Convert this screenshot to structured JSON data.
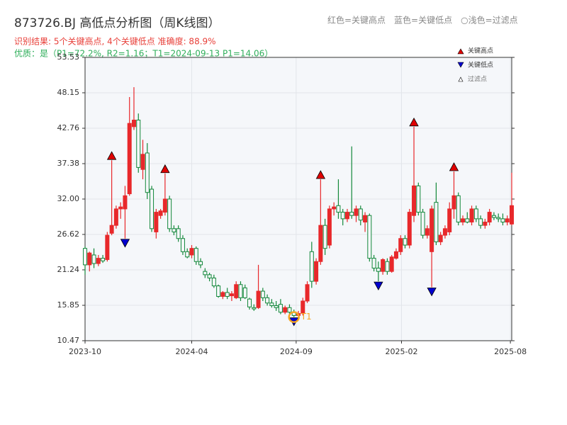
{
  "chart_data": {
    "type": "candlestick",
    "title": "873726.BJ 高低点分析图（周K线图）",
    "subtitle": "识别结果: 5个关键高点, 4个关键低点  准确度: 88.9%",
    "subtitle2": "优质：是（P1=72.2%, R2=1.16；T1=2024-09-13 P1=14.06）",
    "note": "红色=关键高点　蓝色=关键低点　○浅色=过滤点",
    "up_color": "#e8282b",
    "down_color": "#13883a",
    "x": [
      0,
      1,
      2,
      3,
      4,
      5,
      6,
      7,
      8,
      9,
      10,
      11,
      12,
      13,
      14,
      15,
      16,
      17,
      18,
      19,
      20,
      21,
      22,
      23,
      24,
      25,
      26,
      27,
      28,
      29,
      30,
      31,
      32,
      33,
      34,
      35,
      36,
      37,
      38,
      39,
      40,
      41,
      42,
      43,
      44,
      45,
      46,
      47,
      48,
      49,
      50,
      51,
      52,
      53,
      54,
      55,
      56,
      57,
      58,
      59,
      60,
      61,
      62,
      63,
      64,
      65,
      66,
      67,
      68,
      69,
      70,
      71,
      72,
      73,
      74,
      75,
      76,
      77,
      78,
      79,
      80,
      81,
      82,
      83,
      84,
      85,
      86,
      87,
      88,
      89,
      90,
      91,
      92,
      93,
      94,
      95,
      96
    ],
    "open": [
      24.5,
      22.0,
      23.5,
      22.2,
      23.0,
      22.8,
      26.8,
      28.0,
      30.5,
      30.5,
      32.8,
      43.0,
      44.0,
      36.5,
      39.0,
      33.5,
      27.0,
      29.5,
      30.0,
      32.0,
      27.5,
      27.5,
      26.0,
      24.0,
      23.5,
      24.5,
      22.5,
      21.0,
      20.5,
      20.0,
      18.8,
      17.2,
      17.8,
      17.3,
      17.0,
      19.0,
      18.5,
      16.8,
      15.5,
      15.5,
      18.0,
      17.0,
      16.2,
      15.8,
      16.0,
      14.8,
      15.5,
      14.8,
      14.3,
      14.6,
      16.5,
      24.0,
      19.5,
      22.5,
      28.0,
      25.0,
      30.5,
      31.0,
      30.0,
      29.0,
      30.0,
      29.5,
      30.5,
      28.5,
      29.5,
      23.0,
      21.5,
      21.0,
      22.5,
      21.0,
      23.0,
      24.0,
      26.0,
      25.0,
      29.5,
      34.0,
      30.0,
      26.5,
      24.0,
      31.5,
      25.5,
      26.5,
      27.0,
      30.5,
      32.5,
      28.5,
      29.0,
      28.5,
      30.5,
      29.0,
      28.0,
      28.5,
      29.5,
      29.2,
      29.0,
      28.5,
      28.2
    ],
    "high": [
      24.8,
      24.0,
      24.5,
      23.5,
      23.5,
      27.0,
      37.9,
      31.0,
      31.5,
      34.0,
      47.5,
      49.0,
      45.0,
      41.0,
      40.5,
      34.0,
      30.5,
      30.5,
      35.9,
      32.5,
      28.0,
      28.0,
      26.5,
      24.5,
      25.0,
      24.8,
      23.0,
      21.5,
      20.8,
      20.5,
      19.0,
      18.0,
      18.5,
      18.0,
      19.5,
      19.5,
      19.0,
      17.0,
      16.0,
      22.0,
      18.5,
      17.5,
      16.8,
      16.5,
      16.8,
      15.8,
      16.0,
      15.2,
      15.0,
      17.0,
      19.5,
      25.5,
      23.0,
      35.0,
      29.0,
      31.0,
      31.5,
      35.0,
      30.5,
      30.5,
      40.0,
      31.0,
      31.0,
      30.0,
      29.8,
      23.5,
      22.5,
      23.0,
      23.0,
      23.5,
      24.5,
      26.5,
      26.5,
      30.5,
      43.0,
      34.5,
      30.5,
      28.0,
      31.0,
      34.5,
      27.0,
      28.0,
      31.5,
      36.2,
      33.0,
      29.5,
      30.0,
      31.0,
      31.0,
      29.5,
      29.0,
      30.5,
      30.0,
      29.8,
      29.8,
      29.5,
      36.0
    ],
    "low": [
      20.5,
      21.0,
      21.5,
      21.8,
      22.3,
      22.5,
      26.5,
      27.5,
      29.0,
      26.0,
      32.5,
      42.5,
      36.0,
      35.0,
      32.0,
      27.0,
      26.0,
      29.0,
      29.5,
      27.0,
      26.5,
      25.5,
      23.5,
      23.0,
      23.0,
      22.0,
      21.5,
      20.0,
      19.5,
      18.5,
      17.0,
      16.8,
      16.8,
      16.5,
      16.8,
      16.5,
      16.8,
      15.2,
      15.0,
      15.3,
      16.5,
      15.8,
      15.5,
      15.0,
      14.5,
      14.5,
      14.5,
      14.06,
      14.0,
      14.3,
      16.2,
      18.5,
      19.0,
      22.0,
      23.5,
      24.5,
      29.5,
      29.0,
      28.0,
      28.5,
      29.0,
      28.5,
      28.0,
      27.0,
      22.5,
      21.0,
      19.5,
      20.5,
      20.5,
      20.8,
      22.8,
      23.5,
      24.5,
      24.5,
      28.5,
      29.5,
      26.0,
      26.0,
      18.6,
      25.0,
      25.0,
      26.0,
      26.5,
      29.0,
      28.0,
      28.0,
      28.3,
      28.0,
      28.5,
      27.5,
      27.5,
      28.0,
      28.8,
      28.5,
      28.0,
      28.0,
      28.0
    ],
    "close": [
      22.0,
      23.8,
      22.2,
      23.0,
      22.6,
      26.5,
      28.0,
      30.5,
      30.8,
      32.5,
      43.5,
      44.0,
      36.8,
      38.8,
      33.0,
      27.5,
      30.0,
      30.2,
      32.0,
      27.5,
      27.0,
      26.0,
      24.0,
      23.2,
      24.5,
      22.5,
      22.0,
      20.5,
      20.0,
      18.8,
      17.2,
      17.8,
      17.2,
      17.6,
      19.0,
      17.0,
      17.0,
      15.6,
      15.3,
      18.0,
      17.0,
      16.2,
      15.8,
      15.5,
      14.8,
      15.5,
      14.8,
      14.3,
      14.6,
      16.5,
      19.0,
      19.5,
      22.5,
      28.0,
      24.5,
      30.5,
      30.8,
      30.0,
      29.0,
      30.0,
      29.5,
      30.5,
      28.8,
      29.5,
      23.0,
      21.5,
      21.0,
      22.8,
      21.0,
      23.2,
      24.0,
      26.0,
      25.0,
      30.0,
      34.0,
      30.0,
      26.5,
      27.5,
      30.5,
      25.5,
      26.5,
      27.5,
      30.5,
      32.5,
      28.5,
      29.0,
      28.5,
      30.5,
      29.0,
      28.0,
      28.5,
      30.0,
      29.2,
      29.0,
      28.5,
      29.0,
      31.0
    ],
    "key_highs": {
      "name": "关键高点",
      "color": "#e00000",
      "x": [
        6,
        18,
        53,
        74,
        83
      ],
      "values": [
        37.9,
        35.9,
        35.0,
        43.0,
        36.2
      ]
    },
    "key_lows": {
      "name": "关键低点",
      "color": "#0000d0",
      "x": [
        9,
        47,
        66,
        78
      ],
      "values": [
        26.0,
        14.06,
        19.5,
        18.6
      ]
    },
    "filtered": {
      "name": "过滤点"
    },
    "annotations": [
      {
        "text": "T1",
        "x": 47,
        "y": 14.06,
        "color": "#f5a623"
      }
    ],
    "xlim": [
      0,
      96
    ],
    "xticks": [
      {
        "value": 0,
        "label": "2023-10"
      },
      {
        "value": 24,
        "label": "2024-04"
      },
      {
        "value": 47.5,
        "label": "2024-09"
      },
      {
        "value": 71.2,
        "label": "2025-02"
      },
      {
        "value": 95.7,
        "label": "2025-08"
      }
    ],
    "ylim": [
      10.47,
      53.53
    ],
    "yticks": [
      10.47,
      15.85,
      21.24,
      26.62,
      {
        "value": 32,
        "label": "32.00"
      },
      37.38,
      42.76,
      48.15,
      53.53
    ],
    "grid": true
  }
}
